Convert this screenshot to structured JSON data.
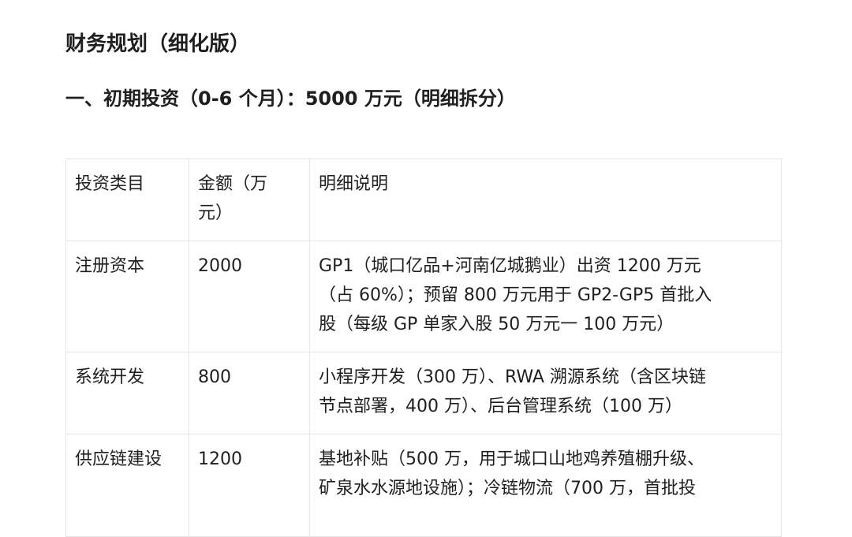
{
  "document": {
    "title": "财务规划（细化版）",
    "section_heading": "一、初期投资（0-6 个月）：5000 万元（明细拆分）",
    "table": {
      "headers": [
        "投资类目",
        "金额（万\n元）",
        "明细说明"
      ],
      "rows": [
        [
          "注册资本",
          "2000",
          "GP1（城口亿品+河南亿城鹅业）出资 1200 万元\n（占 60%）；预留 800 万元用于 GP2-GP5 首批入\n股（每级 GP 单家入股 50 万元一 100 万元）"
        ],
        [
          "系统开发",
          "800",
          "小程序开发（300 万）、RWA 溯源系统（含区块链\n节点部署，400 万）、后台管理系统（100 万）"
        ],
        [
          "供应链建设",
          "1200",
          "基地补贴（500 万，用于城口山地鸡养殖棚升级、\n矿泉水水源地设施）；冷链物流（700 万，首批投"
        ]
      ]
    }
  }
}
